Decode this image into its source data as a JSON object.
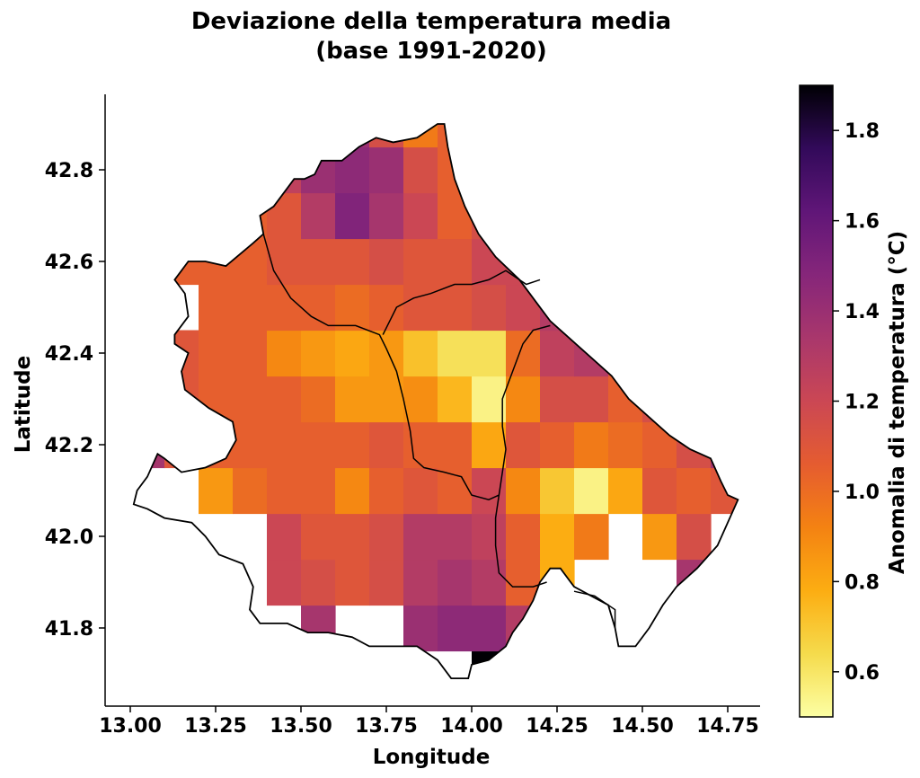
{
  "title_line1": "Deviazione della temperatura media",
  "title_line2": "(base 1991-2020)",
  "chart_data": {
    "type": "heatmap",
    "subject": "Abruzzo region temperature anomaly grid",
    "title": "Deviazione della temperatura media\n(base 1991-2020)",
    "xlabel": "Longitude",
    "ylabel": "Latitude",
    "colorbar_label": "Anomalia di temperatura (°C)",
    "colormap": "inferno_r",
    "color_range": [
      0.5,
      1.9
    ],
    "xlim": [
      12.92,
      14.87
    ],
    "ylim": [
      41.62,
      42.97
    ],
    "x_ticks": [
      13.0,
      13.25,
      13.5,
      13.75,
      14.0,
      14.25,
      14.5,
      14.75
    ],
    "x_tick_labels": [
      "13.00",
      "13.25",
      "13.50",
      "13.75",
      "14.00",
      "14.25",
      "14.50",
      "14.75"
    ],
    "y_ticks": [
      41.8,
      42.0,
      42.2,
      42.4,
      42.6,
      42.8
    ],
    "y_tick_labels": [
      "41.8",
      "42.0",
      "42.2",
      "42.4",
      "42.6",
      "42.8"
    ],
    "colorbar_ticks": [
      0.6,
      0.8,
      1.0,
      1.2,
      1.4,
      1.6,
      1.8
    ],
    "colorbar_tick_labels": [
      "0.6",
      "0.8",
      "1.0",
      "1.2",
      "1.4",
      "1.6",
      "1.8"
    ],
    "cell_size_deg": [
      0.1,
      0.1
    ],
    "grid_lon_start": 13.0,
    "grid_lat_start": 41.65,
    "grid": [
      [
        null,
        null,
        null,
        null,
        null,
        null,
        null,
        null,
        null,
        null,
        1.9,
        null,
        null,
        null,
        null,
        null,
        null,
        null
      ],
      [
        null,
        null,
        null,
        null,
        null,
        1.35,
        null,
        null,
        1.4,
        1.45,
        1.45,
        1.3,
        null,
        null,
        null,
        null,
        null,
        null
      ],
      [
        null,
        null,
        null,
        null,
        1.2,
        1.15,
        1.1,
        1.15,
        1.3,
        1.35,
        1.3,
        1.05,
        0.78,
        null,
        null,
        null,
        1.35,
        null
      ],
      [
        null,
        null,
        null,
        null,
        1.2,
        1.1,
        1.1,
        1.15,
        1.3,
        1.3,
        1.25,
        1.05,
        0.78,
        0.95,
        null,
        0.85,
        1.15,
        null
      ],
      [
        null,
        null,
        0.85,
        1.0,
        1.05,
        1.05,
        0.9,
        1.05,
        1.1,
        1.05,
        1.2,
        0.9,
        0.7,
        0.55,
        0.8,
        1.1,
        1.05,
        1.1
      ],
      [
        1.35,
        1.1,
        1.05,
        1.05,
        1.05,
        1.05,
        1.05,
        1.1,
        1.05,
        1.05,
        0.8,
        1.1,
        1.05,
        0.95,
        1.0,
        1.05,
        1.15,
        1.35
      ],
      [
        1.3,
        1.1,
        1.05,
        1.05,
        1.05,
        1.0,
        0.85,
        0.85,
        0.88,
        0.75,
        0.55,
        0.9,
        1.15,
        1.15,
        1.05,
        1.15,
        1.55,
        null
      ],
      [
        null,
        1.1,
        1.05,
        1.05,
        0.9,
        0.85,
        0.8,
        0.85,
        0.72,
        0.62,
        0.62,
        1.0,
        1.25,
        1.3,
        1.1,
        1.15,
        1.4,
        null
      ],
      [
        null,
        null,
        1.05,
        1.05,
        1.05,
        1.05,
        1.0,
        1.05,
        1.1,
        1.1,
        1.15,
        1.2,
        1.3,
        1.15,
        1.1,
        1.2,
        null,
        null
      ],
      [
        null,
        1.05,
        1.05,
        1.05,
        1.1,
        1.1,
        1.1,
        1.15,
        1.1,
        1.1,
        1.2,
        1.2,
        1.45,
        1.15,
        1.15,
        null,
        null,
        null
      ],
      [
        null,
        1.05,
        1.05,
        1.05,
        1.1,
        1.3,
        1.5,
        1.35,
        1.2,
        1.05,
        1.15,
        1.2,
        null,
        0.85,
        null,
        null,
        null,
        null
      ],
      [
        null,
        0.95,
        1.05,
        1.15,
        1.25,
        1.4,
        1.45,
        1.4,
        1.15,
        1.05,
        1.1,
        1.15,
        null,
        null,
        null,
        null,
        null,
        null
      ],
      [
        null,
        null,
        1.05,
        1.15,
        1.2,
        1.4,
        1.4,
        1.15,
        0.95,
        1.05,
        1.1,
        null,
        null,
        null,
        null,
        null,
        null,
        null
      ],
      [
        null,
        null,
        null,
        0.85,
        1.1,
        1.1,
        1.1,
        1.05,
        1.05,
        1.05,
        null,
        null,
        null,
        null,
        null,
        null,
        null,
        null
      ],
      [
        null,
        null,
        null,
        0.85,
        1.1,
        1.1,
        1.15,
        1.05,
        1.05,
        1.05,
        null,
        null,
        null,
        null,
        null,
        null,
        null,
        null
      ],
      [
        null,
        null,
        null,
        null,
        null,
        0.95,
        1.05,
        1.05,
        1.1,
        1.3,
        null,
        null,
        null,
        null,
        null,
        null,
        null,
        null
      ],
      [
        null,
        null,
        null,
        null,
        null,
        null,
        1.05,
        1.1,
        1.05,
        0.92,
        null,
        null,
        null,
        null,
        null,
        null,
        null,
        null
      ],
      [
        null,
        null,
        null,
        null,
        null,
        null,
        null,
        null,
        0.88,
        null,
        null,
        null,
        null,
        null,
        null,
        null,
        null,
        null
      ]
    ]
  }
}
